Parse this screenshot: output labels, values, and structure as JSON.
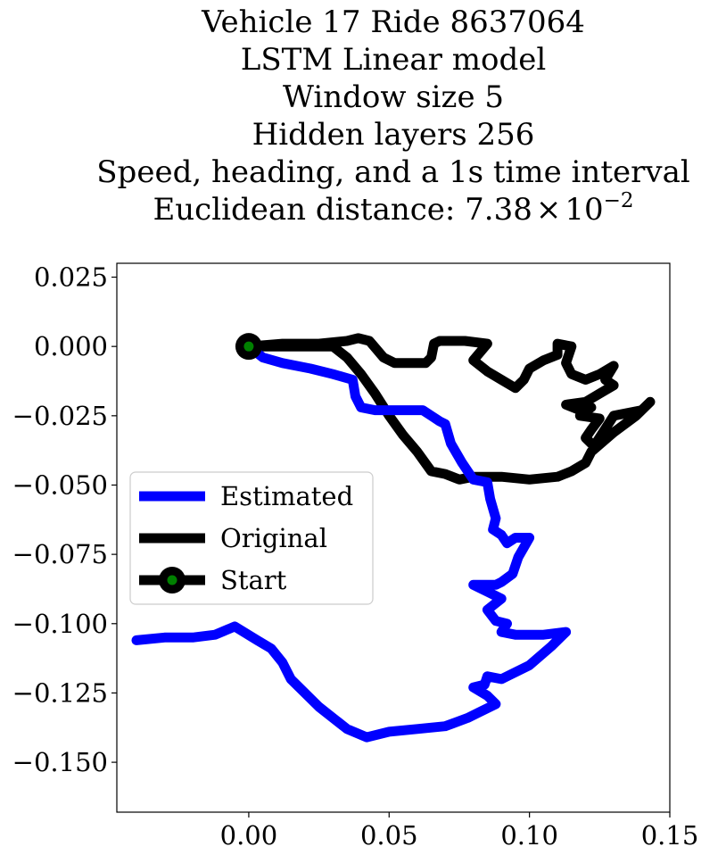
{
  "chart_data": {
    "type": "line",
    "title_lines": [
      "Vehicle 17 Ride 8637064",
      "LSTM Linear model",
      "Window size 5",
      "Hidden layers 256",
      "Speed, heading, and a 1s time interval"
    ],
    "distance_label": "Euclidean distance: 7.38",
    "distance_times": "×",
    "distance_base": "10",
    "distance_exponent": "−2",
    "xlim": [
      -0.047,
      0.15
    ],
    "ylim": [
      -0.168,
      0.03
    ],
    "xticks": [
      0.0,
      0.05,
      0.1,
      0.15
    ],
    "xtick_labels": [
      "0.00",
      "0.05",
      "0.10",
      "0.15"
    ],
    "yticks": [
      0.025,
      0.0,
      -0.025,
      -0.05,
      -0.075,
      -0.1,
      -0.125,
      -0.15
    ],
    "ytick_labels": [
      "0.025",
      "0.000",
      "−0.025",
      "−0.050",
      "−0.075",
      "−0.100",
      "−0.125",
      "−0.150"
    ],
    "legend_position": "center-left",
    "series": [
      {
        "name": "Estimated",
        "color": "#0000ff",
        "x": [
          0.0,
          0.005,
          0.012,
          0.022,
          0.03,
          0.037,
          0.038,
          0.04,
          0.045,
          0.055,
          0.062,
          0.065,
          0.068,
          0.07,
          0.072,
          0.076,
          0.08,
          0.085,
          0.086,
          0.088,
          0.087,
          0.09,
          0.092,
          0.095,
          0.1,
          0.096,
          0.094,
          0.09,
          0.088,
          0.08,
          0.086,
          0.09,
          0.085,
          0.088,
          0.092,
          0.09,
          0.095,
          0.1,
          0.105,
          0.113,
          0.108,
          0.1,
          0.09,
          0.085,
          0.084,
          0.08,
          0.085,
          0.088,
          0.082,
          0.078,
          0.07,
          0.06,
          0.05,
          0.042,
          0.035,
          0.025,
          0.015,
          0.012,
          0.008,
          0.003,
          -0.005,
          -0.012,
          -0.02,
          -0.03,
          -0.04
        ],
        "y": [
          0.0,
          -0.004,
          -0.006,
          -0.008,
          -0.01,
          -0.012,
          -0.018,
          -0.022,
          -0.023,
          -0.023,
          -0.023,
          -0.025,
          -0.027,
          -0.028,
          -0.035,
          -0.042,
          -0.048,
          -0.049,
          -0.055,
          -0.062,
          -0.066,
          -0.068,
          -0.071,
          -0.069,
          -0.069,
          -0.076,
          -0.082,
          -0.085,
          -0.086,
          -0.086,
          -0.089,
          -0.091,
          -0.095,
          -0.099,
          -0.1,
          -0.103,
          -0.104,
          -0.104,
          -0.104,
          -0.103,
          -0.108,
          -0.115,
          -0.12,
          -0.119,
          -0.122,
          -0.123,
          -0.126,
          -0.129,
          -0.132,
          -0.134,
          -0.137,
          -0.138,
          -0.139,
          -0.141,
          -0.138,
          -0.13,
          -0.12,
          -0.114,
          -0.109,
          -0.106,
          -0.101,
          -0.104,
          -0.105,
          -0.105,
          -0.106
        ]
      },
      {
        "name": "Original",
        "color": "#000000",
        "x": [
          0.0,
          0.012,
          0.025,
          0.035,
          0.039,
          0.043,
          0.048,
          0.052,
          0.058,
          0.063,
          0.065,
          0.066,
          0.068,
          0.072,
          0.077,
          0.085,
          0.08,
          0.085,
          0.09,
          0.095,
          0.098,
          0.1,
          0.105,
          0.11,
          0.11,
          0.115,
          0.113,
          0.115,
          0.12,
          0.125,
          0.13,
          0.127,
          0.13,
          0.125,
          0.12,
          0.113,
          0.118,
          0.122,
          0.118,
          0.125,
          0.122,
          0.12,
          0.123,
          0.13,
          0.14,
          0.143,
          0.138,
          0.13,
          0.122,
          0.12,
          0.115,
          0.11,
          0.1,
          0.09,
          0.08,
          0.075,
          0.07,
          0.065,
          0.06,
          0.055,
          0.05,
          0.045,
          0.04,
          0.035,
          0.03,
          0.0
        ],
        "y": [
          0.0,
          0.001,
          0.001,
          0.002,
          0.003,
          0.002,
          -0.004,
          -0.006,
          -0.006,
          -0.006,
          -0.004,
          0.001,
          0.002,
          0.002,
          0.002,
          0.001,
          -0.005,
          -0.009,
          -0.012,
          -0.015,
          -0.012,
          -0.008,
          -0.005,
          -0.003,
          0.001,
          0.0,
          -0.006,
          -0.01,
          -0.012,
          -0.01,
          -0.007,
          -0.012,
          -0.014,
          -0.017,
          -0.02,
          -0.021,
          -0.023,
          -0.022,
          -0.025,
          -0.026,
          -0.03,
          -0.033,
          -0.036,
          -0.025,
          -0.023,
          -0.02,
          -0.025,
          -0.031,
          -0.038,
          -0.042,
          -0.045,
          -0.047,
          -0.048,
          -0.047,
          -0.047,
          -0.048,
          -0.046,
          -0.045,
          -0.038,
          -0.032,
          -0.025,
          -0.017,
          -0.01,
          -0.004,
          0.0,
          0.0
        ]
      },
      {
        "name": "Start",
        "color": "#000000",
        "marker_color": "#008000",
        "x": [
          0.0
        ],
        "y": [
          0.0
        ]
      }
    ]
  }
}
